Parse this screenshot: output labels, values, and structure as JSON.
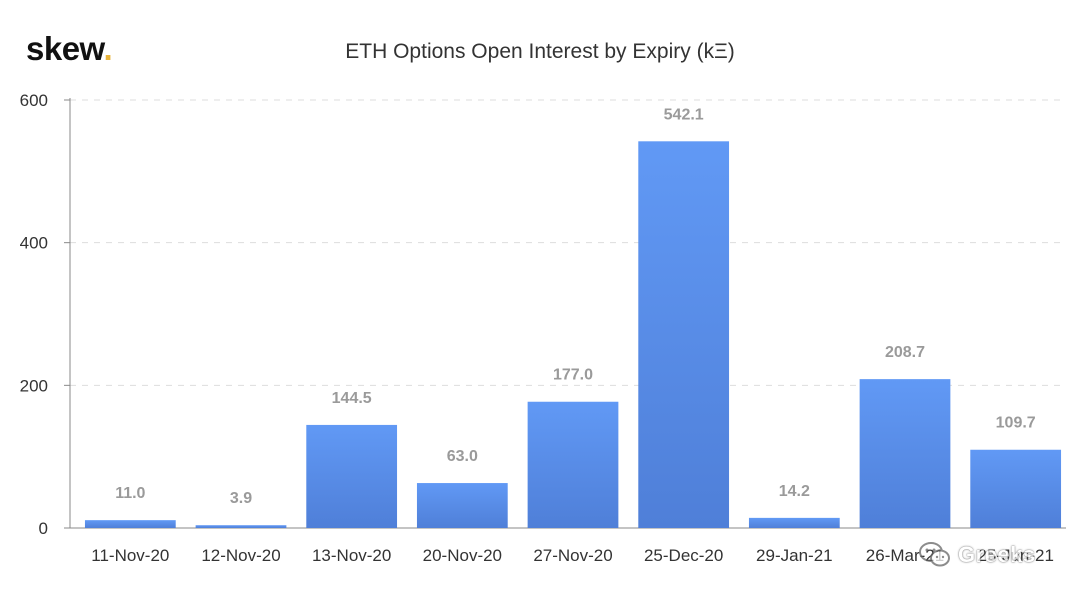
{
  "logo": {
    "text": "skew",
    "dot": "."
  },
  "chart_data": {
    "type": "bar",
    "title": "ETH Options Open Interest by Expiry (kΞ)",
    "categories": [
      "11-Nov-20",
      "12-Nov-20",
      "13-Nov-20",
      "20-Nov-20",
      "27-Nov-20",
      "25-Dec-20",
      "29-Jan-21",
      "26-Mar-21",
      "25-Jun-21"
    ],
    "values": [
      11.0,
      3.9,
      144.5,
      63.0,
      177.0,
      542.1,
      14.2,
      208.7,
      109.7
    ],
    "data_labels": [
      "11.0",
      "3.9",
      "144.5",
      "63.0",
      "177.0",
      "542.1",
      "14.2",
      "208.7",
      "109.7"
    ],
    "ylim": [
      0,
      600
    ],
    "yticks": [
      0,
      200,
      400,
      600
    ],
    "grid": true,
    "bar_color_top": "#6199f5",
    "bar_color_bottom": "#4f7fd8"
  },
  "watermark": {
    "text": "Greeks",
    "icon": "wechat-icon"
  }
}
